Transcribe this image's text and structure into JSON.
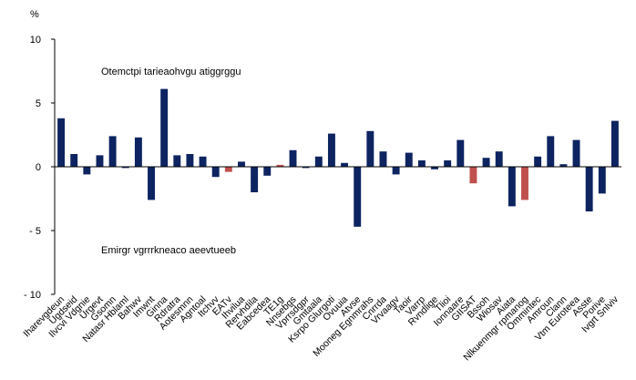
{
  "chart_data": {
    "type": "bar",
    "unit_label": "%",
    "ylim": [
      -10,
      10
    ],
    "yticks": [
      "10",
      "5",
      "0",
      "- 5",
      "- 10"
    ],
    "ytick_values": [
      10,
      5,
      0,
      -5,
      -10
    ],
    "grid": false,
    "legend": "none",
    "colors": {
      "default": "#0d2461",
      "highlight": "#c0504d"
    },
    "annotations": [
      {
        "text": "Otemctpi tarieaohvgu atiggrggu",
        "at_value": 7.5
      },
      {
        "text": "Emirgr vgrrrkneaco aeevtueeb",
        "at_value": -6.5
      }
    ],
    "categories": [
      "Iharevgdeun",
      "Ugdseid",
      "Ilvcvi Vdgnie",
      "Urgevt",
      "Gsomn",
      "Natasr Hblaml",
      "Bahwv",
      "Imwnt",
      "Ginna",
      "Rdratra",
      "Aotesmnn",
      "Agntoal",
      "Itchvv",
      "EATv",
      "Ihvilua",
      "Rervhdila",
      "Eabcedea",
      "TE1g",
      "Nnsebgs",
      "Vprrsdgpr",
      "Gmtaala",
      "Ksrpo Glurgoti",
      "Ovuuia",
      "Atvse",
      "Mooneg Egnmrahs",
      "Cnrrda",
      "Vrvaagv",
      "Taoir",
      "Varrp",
      "Rvndlige",
      "Tlioi",
      "Ionnaare",
      "GIISAT",
      "Bssoh",
      "Wiosav",
      "Aiata",
      "Nlkuenmgr rpmanog",
      "Ommintec",
      "Amroun",
      "Clann",
      "Vtm Euroteea",
      "Asste",
      "Porive",
      "Ivgrt Snlviv"
    ],
    "values": [
      3.8,
      1.0,
      -0.6,
      0.9,
      2.4,
      -0.1,
      2.3,
      -2.6,
      6.1,
      0.9,
      1.0,
      0.8,
      -0.8,
      -0.4,
      0.4,
      -2.0,
      -0.7,
      0.15,
      1.3,
      -0.1,
      0.8,
      2.6,
      0.3,
      -4.7,
      2.8,
      1.2,
      -0.6,
      1.1,
      0.5,
      -0.2,
      0.5,
      2.1,
      -1.3,
      0.7,
      1.2,
      -3.1,
      -2.6,
      0.8,
      2.4,
      0.2,
      2.1,
      -3.5,
      -2.1,
      3.6
    ],
    "highlighted": [
      13,
      17,
      32,
      36
    ]
  }
}
